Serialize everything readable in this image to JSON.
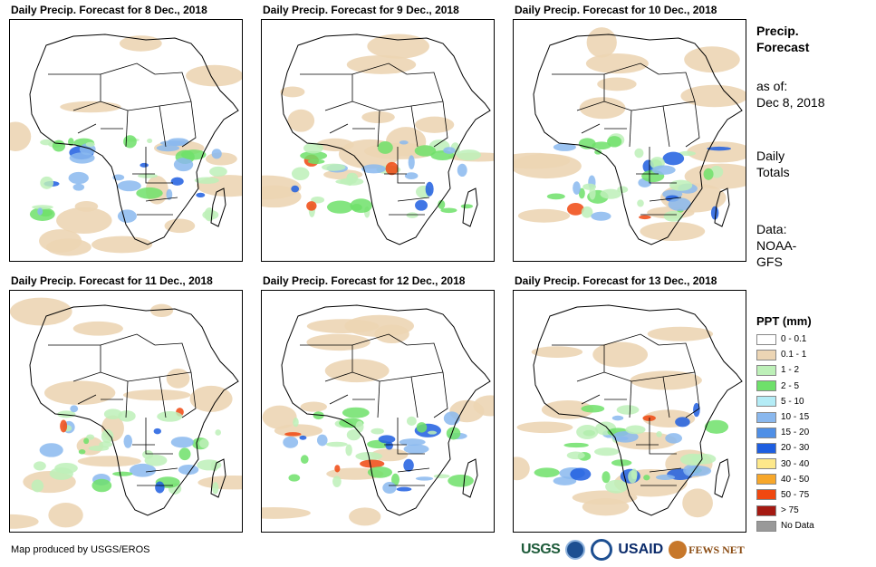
{
  "panels": [
    {
      "title": "Daily Precip. Forecast for 8 Dec., 2018"
    },
    {
      "title": "Daily Precip. Forecast for 9 Dec., 2018"
    },
    {
      "title": "Daily Precip. Forecast for 10 Dec., 2018"
    },
    {
      "title": "Daily Precip. Forecast for 11 Dec., 2018"
    },
    {
      "title": "Daily Precip. Forecast for 12 Dec., 2018"
    },
    {
      "title": "Daily Precip. Forecast for 13 Dec., 2018"
    }
  ],
  "sidebar": {
    "heading_line1": "Precip.",
    "heading_line2": "Forecast",
    "asof_line1": "as of:",
    "asof_line2": "Dec 8, 2018",
    "totals_line1": "Daily",
    "totals_line2": "Totals",
    "source_line1": "Data:",
    "source_line2": "NOAA-",
    "source_line3": "GFS"
  },
  "legend": {
    "title": "PPT (mm)",
    "items": [
      {
        "label": "0 - 0.1",
        "color": "#ffffff"
      },
      {
        "label": "0.1 - 1",
        "color": "#ecd5b4"
      },
      {
        "label": "1 - 2",
        "color": "#bdf0b8"
      },
      {
        "label": "2 - 5",
        "color": "#6ee06a"
      },
      {
        "label": "5 - 10",
        "color": "#b4ecf6"
      },
      {
        "label": "10 - 15",
        "color": "#8ab8ee"
      },
      {
        "label": "15 - 20",
        "color": "#4f8fe6"
      },
      {
        "label": "20 - 30",
        "color": "#1e5ee0"
      },
      {
        "label": "30 - 40",
        "color": "#fde88a"
      },
      {
        "label": "40 - 50",
        "color": "#f7a72a"
      },
      {
        "label": "50 - 75",
        "color": "#f04810"
      },
      {
        "label": "> 75",
        "color": "#a51a12"
      },
      {
        "label": "No Data",
        "color": "#999999"
      }
    ]
  },
  "footer": {
    "credit": "Map produced by USGS/EROS",
    "logos": {
      "usgs": "USGS",
      "usaid": "USAID",
      "fews": "FEWS NET"
    }
  }
}
